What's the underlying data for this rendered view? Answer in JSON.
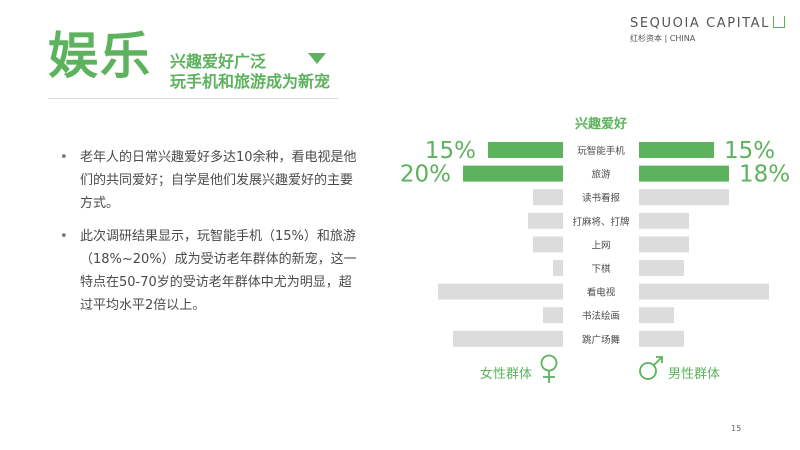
{
  "header": {
    "title": "娱乐",
    "subtitle_line1": "兴趣爱好广泛",
    "subtitle_line2": "玩手机和旅游成为新宠"
  },
  "brand": {
    "name": "SEQUOIA CAPITAL",
    "sub": "红杉资本 | CHINA"
  },
  "bullets": [
    "老年人的日常兴趣爱好多达10余种，看电视是他们的共同爱好；自学是他们发展兴趣爱好的主要方式。",
    "此次调研结果显示，玩智能手机（15%）和旅游（18%~20%）成为受访老年群体的新宠，这一特点在50-70岁的受访老年群体中尤为明显，超过平均水平2倍以上。"
  ],
  "page_number": "15",
  "colors": {
    "accent": "#5db35d",
    "bar_gray": "#dcdcdc"
  },
  "chart_data": {
    "type": "bar",
    "layout": "butterfly",
    "title": "兴趣爱好",
    "categories": [
      "玩智能手机",
      "旅游",
      "读书看报",
      "打麻将、打牌",
      "上网",
      "下棋",
      "看电视",
      "书法绘画",
      "跳广场舞"
    ],
    "series": [
      {
        "name": "女性群体",
        "icon": "female-icon",
        "values": [
          15,
          20,
          6,
          7,
          6,
          2,
          25,
          4,
          22
        ],
        "labels": [
          "15%",
          "20%",
          "",
          "",
          "",
          "",
          "",
          "",
          ""
        ]
      },
      {
        "name": "男性群体",
        "icon": "male-icon",
        "values": [
          15,
          18,
          18,
          10,
          10,
          9,
          26,
          7,
          9
        ],
        "labels": [
          "15%",
          "18%",
          "",
          "",
          "",
          "",
          "",
          "",
          ""
        ]
      }
    ],
    "highlight_categories": [
      "玩智能手机",
      "旅游"
    ],
    "xlim": [
      0,
      30
    ]
  }
}
